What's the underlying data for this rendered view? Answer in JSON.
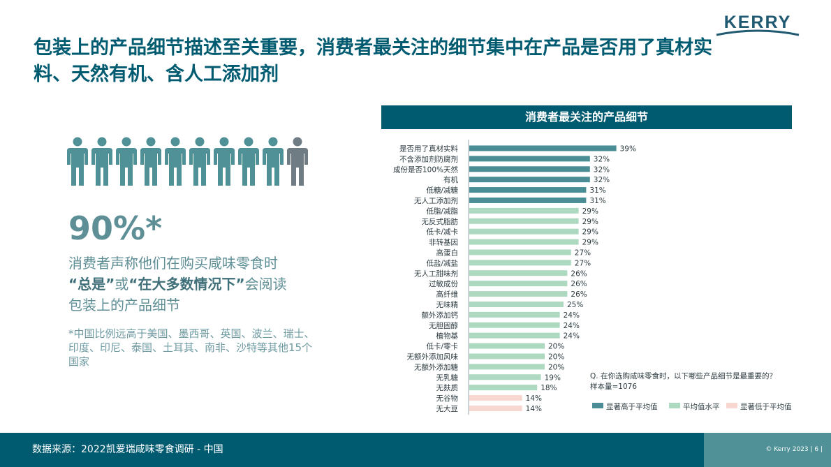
{
  "brand": {
    "logo_text": "KERRY"
  },
  "title": "包装上的产品细节描述至关重要，消费者最关注的细节集中在产品是否用了真材实料、天然有机、含人工添加剂",
  "left": {
    "people_icon": "person-icon",
    "people_total": 10,
    "people_highlighted": 9,
    "stat_value": "90%*",
    "stat_desc": {
      "line1": "消费者声称他们在购买咸味零食时",
      "q1": "“总是”",
      "or": "或",
      "q2": "“在大多数情况下”",
      "rest": "会阅读",
      "line3": "包装上的产品细节"
    },
    "footnote": "*中国比例远高于美国、墨西哥、英国、波兰、瑞士、印度、印尼、泰国、土耳其、南非、沙特等其他15个国家"
  },
  "chart_header": "消费者最关注的产品细节",
  "chart_data": {
    "type": "bar",
    "orientation": "horizontal",
    "categories": [
      "是否用了真材实料",
      "不含添加剂防腐剂",
      "成份是否100%天然",
      "有机",
      "低糖/减糖",
      "无人工添加剂",
      "低脂/减脂",
      "无反式脂肪",
      "低卡/减卡",
      "非转基因",
      "高蛋白",
      "低盐/减盐",
      "无人工甜味剂",
      "过敏成份",
      "高纤维",
      "无味精",
      "额外添加钙",
      "无胆固醇",
      "植物基",
      "低卡/零卡",
      "无额外添加风味",
      "无额外添加糖",
      "无乳糖",
      "无麸质",
      "无谷物",
      "无大豆"
    ],
    "values": [
      39,
      32,
      32,
      32,
      31,
      31,
      29,
      29,
      29,
      29,
      27,
      27,
      26,
      26,
      26,
      25,
      24,
      24,
      24,
      20,
      20,
      20,
      19,
      18,
      14,
      14
    ],
    "value_labels": [
      "39%",
      "32%",
      "32%",
      "32%",
      "31%",
      "31%",
      "29%",
      "29%",
      "29%",
      "29%",
      "27%",
      "27%",
      "26%",
      "26%",
      "26%",
      "25%",
      "24%",
      "24%",
      "24%",
      "20%",
      "20%",
      "20%",
      "19%",
      "18%",
      "14%",
      "14%"
    ],
    "groups": [
      "high",
      "high",
      "high",
      "high",
      "high",
      "high",
      "avg",
      "avg",
      "avg",
      "avg",
      "avg",
      "avg",
      "avg",
      "avg",
      "avg",
      "avg",
      "avg",
      "avg",
      "avg",
      "avg",
      "avg",
      "avg",
      "avg",
      "avg",
      "low",
      "low"
    ],
    "group_colors": {
      "high": "#4a8d94",
      "avg": "#acd9c0",
      "low": "#f7d7cf"
    },
    "xlim": [
      0,
      40
    ],
    "grid": false,
    "legend_position": "bottom-right",
    "legend": [
      {
        "key": "high",
        "label": "显著高于平均值"
      },
      {
        "key": "avg",
        "label": "平均值水平"
      },
      {
        "key": "low",
        "label": "显著低于平均值"
      }
    ]
  },
  "question": {
    "text": "Q. 在你选购咸味零食时，以下哪些产品细节是最重要的？",
    "sample": "样本量=1076"
  },
  "footer": {
    "source": "数据来源：2022凯爱瑞咸味零食调研 - 中国",
    "copyright": "© Kerry 2023 | 6 |"
  },
  "colors": {
    "primary": "#005b71",
    "accent": "#4f9196",
    "person": "#4f9196",
    "person_other": "#6f7c83"
  }
}
